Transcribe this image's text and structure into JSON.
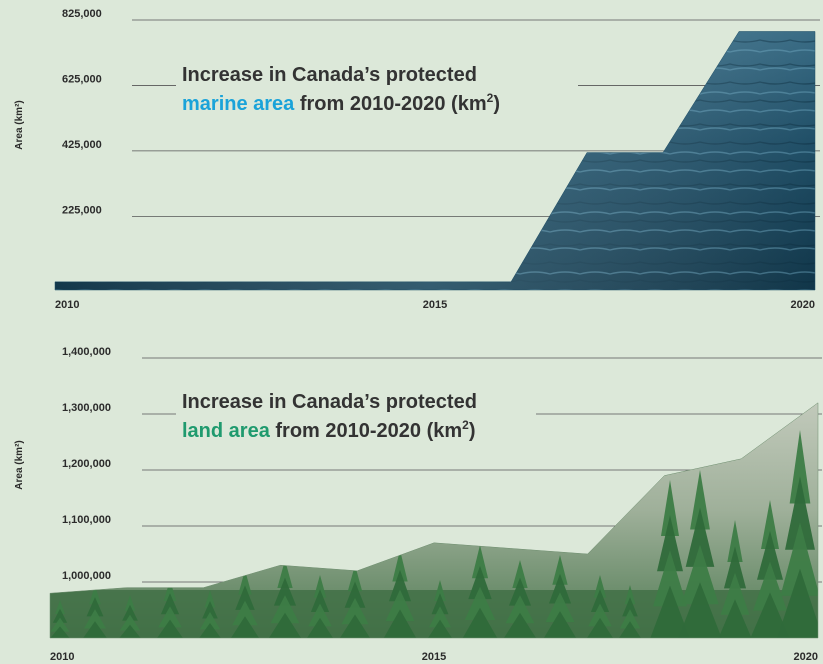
{
  "colors": {
    "background": "#dce8d9",
    "marine_accent": "#1aa3d9",
    "land_accent": "#1f9a6e",
    "text": "#333333"
  },
  "chart_data": [
    {
      "type": "area",
      "title_line1": "Increase in Canada’s protected",
      "title_highlight": "marine area",
      "title_rest": " from 2010-2020 (km",
      "title_sup": "2",
      "title_close": ")",
      "ylabel": "Area (km²)",
      "xlabel": "",
      "x": [
        2010,
        2016,
        2017,
        2018,
        2019,
        2020
      ],
      "values": [
        25000,
        25000,
        420000,
        420000,
        790000,
        790000
      ],
      "x_ticks": [
        "2010",
        "2015",
        "2020"
      ],
      "y_ticks": [
        "225,000",
        "425,000",
        "625,000",
        "825,000"
      ],
      "ylim": [
        0,
        825000
      ],
      "grid": true,
      "fill": "sea-water-photo"
    },
    {
      "type": "area",
      "title_line1": "Increase in Canada’s protected",
      "title_highlight": "land area",
      "title_rest": " from 2010-2020 (km",
      "title_sup": "2",
      "title_close": ")",
      "ylabel": "Area (km²)",
      "xlabel": "",
      "x": [
        2010,
        2011,
        2012,
        2013,
        2014,
        2015,
        2016,
        2017,
        2018,
        2019,
        2020
      ],
      "values": [
        980000,
        990000,
        990000,
        1030000,
        1020000,
        1070000,
        1060000,
        1050000,
        1190000,
        1220000,
        1320000
      ],
      "x_ticks": [
        "2010",
        "2015",
        "2020"
      ],
      "y_ticks": [
        "1,000,000",
        "1,100,000",
        "1,200,000",
        "1,300,000",
        "1,400,000"
      ],
      "ylim": [
        900000,
        1400000
      ],
      "grid": true,
      "fill": "forest-photo"
    }
  ]
}
